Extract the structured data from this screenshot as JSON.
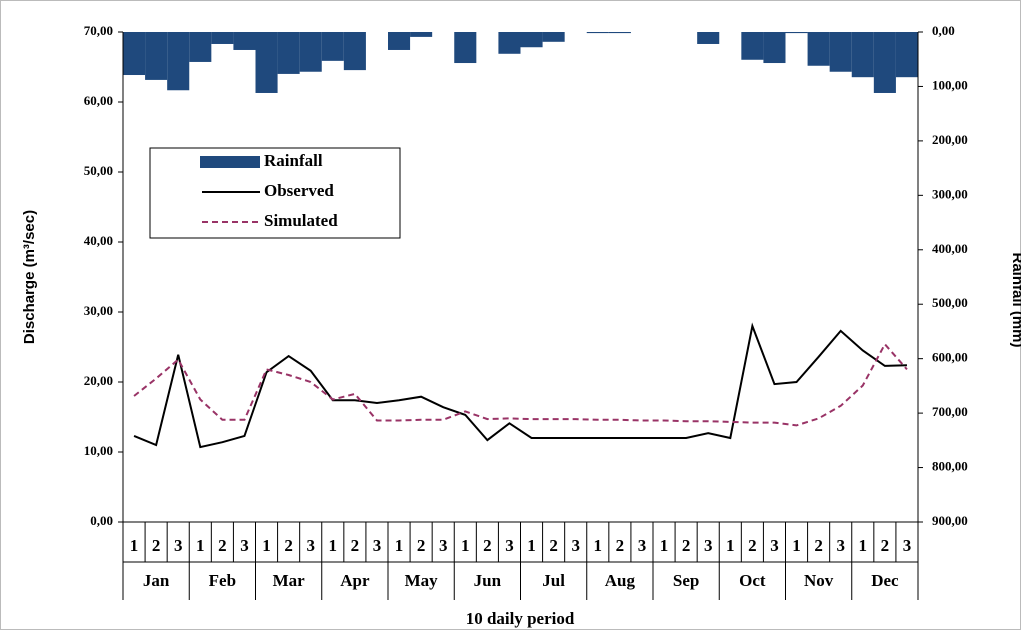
{
  "chart_data": {
    "type": "combo",
    "x_label": "10 daily period",
    "y_label": "Discharge (m³/sec)",
    "y2_label": "Rainfall (mm)",
    "categories": [
      "1",
      "2",
      "3",
      "1",
      "2",
      "3",
      "1",
      "2",
      "3",
      "1",
      "2",
      "3",
      "1",
      "2",
      "3",
      "1",
      "2",
      "3",
      "1",
      "2",
      "3",
      "1",
      "2",
      "3",
      "1",
      "2",
      "3",
      "1",
      "2",
      "3",
      "1",
      "2",
      "3",
      "1",
      "2",
      "3"
    ],
    "groups": [
      "Jan",
      "Feb",
      "Mar",
      "Apr",
      "May",
      "Jun",
      "Jul",
      "Aug",
      "Sep",
      "Oct",
      "Nov",
      "Dec"
    ],
    "ylim": [
      0,
      70
    ],
    "yticks": [
      {
        "value": 0,
        "label": "0,00"
      },
      {
        "value": 10,
        "label": "10,00"
      },
      {
        "value": 20,
        "label": "20,00"
      },
      {
        "value": 30,
        "label": "30,00"
      },
      {
        "value": 40,
        "label": "40,00"
      },
      {
        "value": 50,
        "label": "50,00"
      },
      {
        "value": 60,
        "label": "60,00"
      },
      {
        "value": 70,
        "label": "70,00"
      }
    ],
    "y2lim": [
      0,
      900
    ],
    "y2_inverted": true,
    "y2ticks": [
      {
        "value": 0,
        "label": "0,00"
      },
      {
        "value": 100,
        "label": "100,00"
      },
      {
        "value": 200,
        "label": "200,00"
      },
      {
        "value": 300,
        "label": "300,00"
      },
      {
        "value": 400,
        "label": "400,00"
      },
      {
        "value": 500,
        "label": "500,00"
      },
      {
        "value": 600,
        "label": "600,00"
      },
      {
        "value": 700,
        "label": "700,00"
      },
      {
        "value": 800,
        "label": "800,00"
      },
      {
        "value": 900,
        "label": "900,00"
      }
    ],
    "legend": "upper left",
    "series": [
      {
        "name": "Rainfall",
        "type": "bar",
        "axis": "y2",
        "color": "#1f497d",
        "values": [
          79,
          88,
          107,
          55,
          22,
          33,
          112,
          77,
          73,
          53,
          70,
          0,
          33,
          9,
          0,
          57,
          0,
          40,
          28,
          18,
          0,
          2,
          2,
          0,
          0,
          0,
          22,
          0,
          51,
          57,
          2,
          62,
          73,
          83,
          112,
          83
        ]
      },
      {
        "name": "Observed",
        "type": "line",
        "color": "#000000",
        "dashed": false,
        "values": [
          12.3,
          11,
          23.9,
          10.7,
          11.4,
          12.3,
          21.4,
          23.7,
          21.6,
          17.4,
          17.4,
          17,
          17.4,
          17.9,
          16.4,
          15.3,
          11.7,
          14.1,
          12,
          12,
          12,
          12,
          12,
          12,
          12,
          12,
          12.7,
          12,
          28,
          19.7,
          20,
          23.6,
          27.3,
          24.5,
          22.3,
          22.4
        ]
      },
      {
        "name": "Simulated",
        "type": "line",
        "color": "#993366",
        "dashed": true,
        "values": [
          18,
          20.5,
          23.2,
          17.5,
          14.6,
          14.6,
          21.8,
          21,
          20,
          17.5,
          18.3,
          14.5,
          14.5,
          14.6,
          14.6,
          15.8,
          14.7,
          14.8,
          14.7,
          14.7,
          14.7,
          14.6,
          14.6,
          14.5,
          14.5,
          14.4,
          14.4,
          14.3,
          14.2,
          14.2,
          13.8,
          14.8,
          16.6,
          19.5,
          25.4,
          21.8
        ]
      }
    ]
  }
}
